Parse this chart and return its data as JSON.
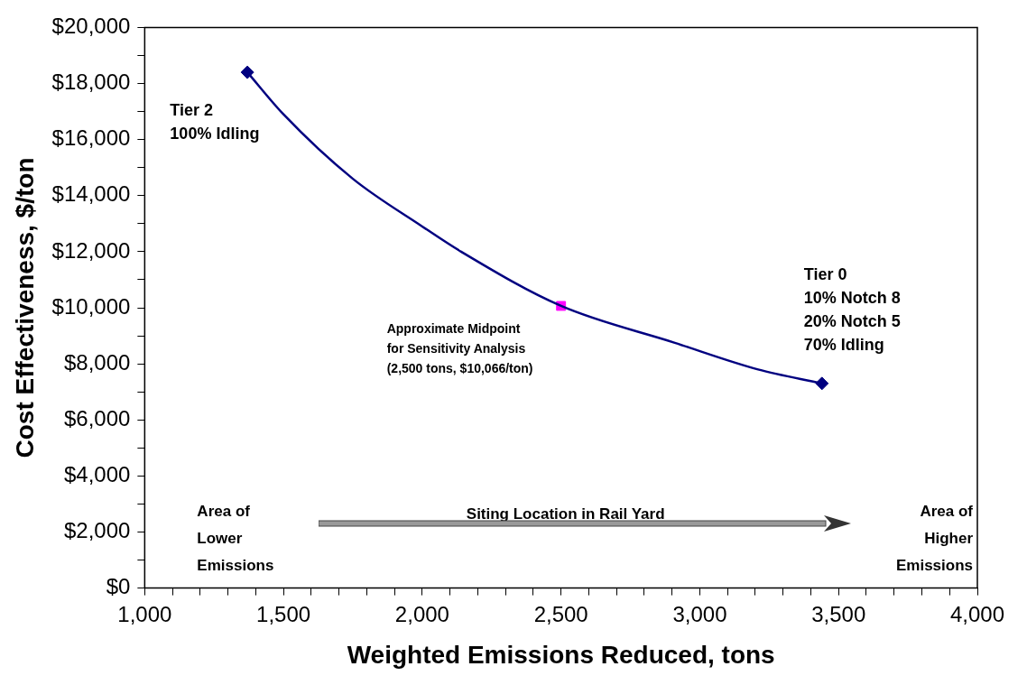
{
  "chart_data": {
    "type": "line",
    "xlabel": "Weighted Emissions Reduced, tons",
    "ylabel": "Cost Effectiveness, $/ton",
    "xlim": [
      1000,
      4000
    ],
    "ylim": [
      0,
      20000
    ],
    "xticks": [
      {
        "value": 1000,
        "label": "1,000"
      },
      {
        "value": 1100,
        "label": null
      },
      {
        "value": 1200,
        "label": null
      },
      {
        "value": 1300,
        "label": null
      },
      {
        "value": 1400,
        "label": null
      },
      {
        "value": 1500,
        "label": "1,500"
      },
      {
        "value": 1600,
        "label": null
      },
      {
        "value": 1700,
        "label": null
      },
      {
        "value": 1800,
        "label": null
      },
      {
        "value": 1900,
        "label": null
      },
      {
        "value": 2000,
        "label": "2,000"
      },
      {
        "value": 2100,
        "label": null
      },
      {
        "value": 2200,
        "label": null
      },
      {
        "value": 2300,
        "label": null
      },
      {
        "value": 2400,
        "label": null
      },
      {
        "value": 2500,
        "label": "2,500"
      },
      {
        "value": 2600,
        "label": null
      },
      {
        "value": 2700,
        "label": null
      },
      {
        "value": 2800,
        "label": null
      },
      {
        "value": 2900,
        "label": null
      },
      {
        "value": 3000,
        "label": "3,000"
      },
      {
        "value": 3100,
        "label": null
      },
      {
        "value": 3200,
        "label": null
      },
      {
        "value": 3300,
        "label": null
      },
      {
        "value": 3400,
        "label": null
      },
      {
        "value": 3500,
        "label": "3,500"
      },
      {
        "value": 3600,
        "label": null
      },
      {
        "value": 3700,
        "label": null
      },
      {
        "value": 3800,
        "label": null
      },
      {
        "value": 3900,
        "label": null
      },
      {
        "value": 4000,
        "label": "4,000"
      }
    ],
    "yticks": [
      {
        "value": 0,
        "label": "$0"
      },
      {
        "value": 1000,
        "label": null
      },
      {
        "value": 2000,
        "label": "$2,000"
      },
      {
        "value": 3000,
        "label": null
      },
      {
        "value": 4000,
        "label": "$4,000"
      },
      {
        "value": 5000,
        "label": null
      },
      {
        "value": 6000,
        "label": "$6,000"
      },
      {
        "value": 7000,
        "label": null
      },
      {
        "value": 8000,
        "label": "$8,000"
      },
      {
        "value": 9000,
        "label": null
      },
      {
        "value": 10000,
        "label": "$10,000"
      },
      {
        "value": 11000,
        "label": null
      },
      {
        "value": 12000,
        "label": "$12,000"
      },
      {
        "value": 13000,
        "label": null
      },
      {
        "value": 14000,
        "label": "$14,000"
      },
      {
        "value": 15000,
        "label": null
      },
      {
        "value": 16000,
        "label": "$16,000"
      },
      {
        "value": 17000,
        "label": null
      },
      {
        "value": 18000,
        "label": "$18,000"
      },
      {
        "value": 19000,
        "label": null
      },
      {
        "value": 20000,
        "label": "$20,000"
      }
    ],
    "grid": false,
    "legend": false,
    "line_style": "solid",
    "series": [
      {
        "marker": "none",
        "color": "#000080",
        "x": [
          1370,
          1500,
          1750,
          2000,
          2140,
          2500,
          2910,
          3210,
          3440
        ],
        "values": [
          18400,
          16900,
          14600,
          12900,
          12000,
          10066,
          8750,
          7800,
          7300
        ]
      },
      {
        "type": "scatter",
        "marker": "diamond",
        "color": "#000080",
        "x": [
          1370,
          3440
        ],
        "values": [
          18400,
          7300
        ]
      },
      {
        "type": "scatter",
        "marker": "square",
        "color": "#ff00ff",
        "x": [
          2500
        ],
        "values": [
          10066
        ]
      }
    ],
    "annotations": [
      {
        "text": "Tier 2\n100% Idling",
        "x": 1370,
        "y": 18400
      },
      {
        "text": "Approximate Midpoint\nfor Sensitivity Analysis\n(2,500 tons, $10,066/ton)",
        "x": 2500,
        "y": 10066
      },
      {
        "text": "Tier 0\n10% Notch 8\n20% Notch 5\n70% Idling",
        "x": 3440,
        "y": 7300
      },
      "Area of\nLower\nEmissions",
      "Siting Location in Rail Yard",
      "Area of\nHigher\nEmissions"
    ]
  }
}
